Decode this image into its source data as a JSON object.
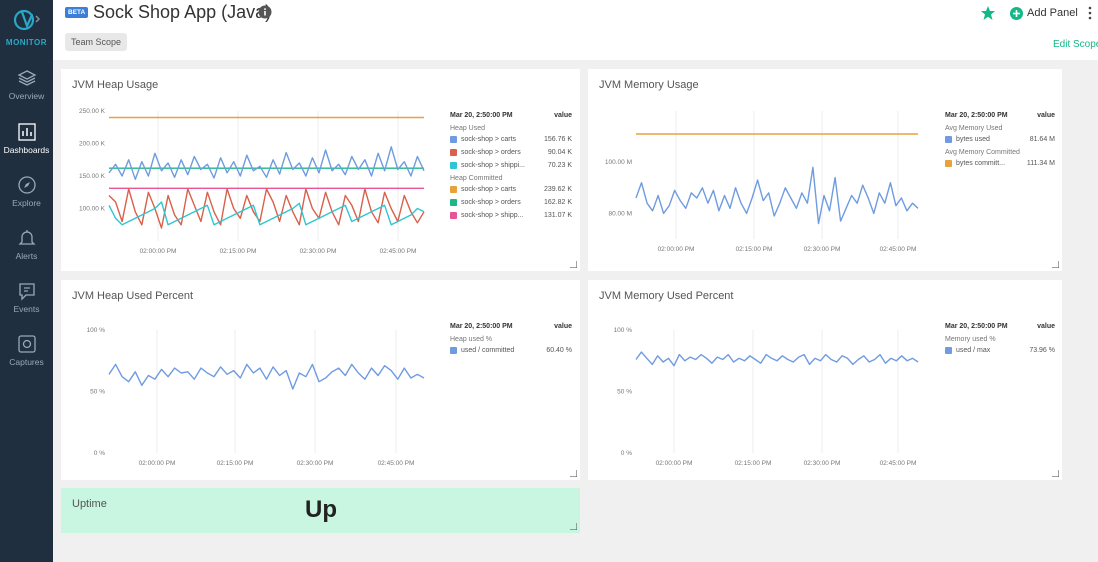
{
  "app": {
    "brand": "MONITOR",
    "beta": "BETA",
    "title": "Sock Shop App (Java)",
    "scope": "Team Scope",
    "add_panel": "Add Panel",
    "edit_scope": "Edit Scope",
    "accent": "#12b886"
  },
  "nav": [
    {
      "label": "Overview",
      "icon": "overview-icon"
    },
    {
      "label": "Dashboards",
      "icon": "dashboards-icon",
      "active": true
    },
    {
      "label": "Explore",
      "icon": "explore-icon"
    },
    {
      "label": "Alerts",
      "icon": "alerts-icon"
    },
    {
      "label": "Events",
      "icon": "events-icon"
    },
    {
      "label": "Captures",
      "icon": "captures-icon"
    }
  ],
  "panels": {
    "heap_usage": {
      "title": "JVM Heap Usage",
      "legend": {
        "timestamp": "Mar 20, 2:50:00 PM",
        "value_header": "value",
        "groups": [
          {
            "name": "Heap Used",
            "rows": [
              {
                "label": "sock-shop > carts",
                "value": "156.76 K",
                "color": "#6f9be0"
              },
              {
                "label": "sock-shop > orders",
                "value": "90.04 K",
                "color": "#d9604a"
              },
              {
                "label": "sock-shop > shippi...",
                "value": "70.23 K",
                "color": "#2cc7d1"
              }
            ]
          },
          {
            "name": "Heap Committed",
            "rows": [
              {
                "label": "sock-shop > carts",
                "value": "239.62 K",
                "color": "#e8a23b"
              },
              {
                "label": "sock-shop > orders",
                "value": "162.82 K",
                "color": "#1db885"
              },
              {
                "label": "sock-shop > shipp...",
                "value": "131.07 K",
                "color": "#e85597"
              }
            ]
          }
        ]
      }
    },
    "memory_usage": {
      "title": "JVM Memory Usage",
      "legend": {
        "timestamp": "Mar 20, 2:50:00 PM",
        "value_header": "value",
        "groups": [
          {
            "name": "Avg Memory Used",
            "rows": [
              {
                "label": "bytes used",
                "value": "81.64 M",
                "color": "#6f9be0"
              }
            ]
          },
          {
            "name": "Avg Memory Committed",
            "rows": [
              {
                "label": "bytes committ...",
                "value": "111.34 M",
                "color": "#e8a23b"
              }
            ]
          }
        ]
      }
    },
    "heap_percent": {
      "title": "JVM Heap Used Percent",
      "legend": {
        "timestamp": "Mar 20, 2:50:00 PM",
        "value_header": "value",
        "groups": [
          {
            "name": "Heap used %",
            "rows": [
              {
                "label": "used / committed",
                "value": "60.40 %",
                "color": "#6f9be0"
              }
            ]
          }
        ]
      }
    },
    "memory_percent": {
      "title": "JVM Memory Used Percent",
      "legend": {
        "timestamp": "Mar 20, 2:50:00 PM",
        "value_header": "value",
        "groups": [
          {
            "name": "Memory used %",
            "rows": [
              {
                "label": "used / max",
                "value": "73.96 %",
                "color": "#6f9be0"
              }
            ]
          }
        ]
      }
    },
    "uptime": {
      "title": "Uptime",
      "status": "Up",
      "color": "#c8f6e0"
    }
  },
  "chart_data": [
    {
      "type": "line",
      "title": "JVM Heap Usage",
      "ylim": [
        50,
        250
      ],
      "yticks": [
        "250.00 K",
        "200.00 K",
        "150.00 K",
        "100.00 K"
      ],
      "xticks": [
        "02:00:00 PM",
        "02:15:00 PM",
        "02:30:00 PM",
        "02:45:00 PM"
      ],
      "series": [
        {
          "name": "committed carts",
          "color": "#e8a23b",
          "values": [
            240,
            240,
            240,
            240,
            240,
            240,
            240,
            240,
            240,
            240
          ]
        },
        {
          "name": "committed orders",
          "color": "#1db885",
          "values": [
            162,
            162,
            162,
            162,
            162,
            162,
            162,
            162,
            162,
            162
          ]
        },
        {
          "name": "committed shipping",
          "color": "#e85597",
          "values": [
            131,
            131,
            131,
            131,
            131,
            131,
            131,
            131,
            131,
            131
          ]
        },
        {
          "name": "used carts",
          "color": "#6f9be0",
          "values": [
            155,
            168,
            150,
            175,
            145,
            172,
            150,
            185,
            158,
            170,
            148,
            175,
            152,
            180,
            160,
            168,
            147,
            178,
            155,
            172,
            150,
            182,
            158,
            165,
            148,
            175,
            153,
            186,
            160,
            170,
            150,
            178,
            155,
            190,
            158,
            168,
            152,
            180,
            160,
            175,
            150,
            185,
            158,
            195,
            160,
            172,
            150,
            180,
            158
          ]
        },
        {
          "name": "used orders",
          "color": "#d9604a",
          "values": [
            120,
            110,
            80,
            130,
            95,
            75,
            125,
            100,
            70,
            120,
            90,
            75,
            130,
            105,
            80,
            125,
            95,
            75,
            130,
            100,
            85,
            120,
            95,
            80,
            130,
            110,
            80,
            120,
            95,
            75,
            130,
            100,
            85,
            125,
            95,
            75,
            120,
            105,
            80,
            130,
            95,
            78,
            125,
            100,
            80,
            120,
            95,
            78,
            95
          ]
        },
        {
          "name": "used shipping",
          "color": "#2cc7d1",
          "values": [
            105,
            85,
            75,
            80,
            85,
            90,
            95,
            100,
            110,
            75,
            80,
            85,
            90,
            95,
            100,
            105,
            75,
            80,
            85,
            90,
            95,
            100,
            105,
            75,
            80,
            85,
            90,
            95,
            100,
            108,
            75,
            80,
            85,
            90,
            95,
            100,
            105,
            80,
            85,
            90,
            95,
            100,
            105,
            75,
            80,
            85,
            90,
            100,
            95
          ]
        }
      ]
    },
    {
      "type": "line",
      "title": "JVM Memory Usage",
      "ylim": [
        70,
        120
      ],
      "yticks": [
        "100.00 M",
        "80.00 M"
      ],
      "xticks": [
        "02:00:00 PM",
        "02:15:00 PM",
        "02:30:00 PM",
        "02:45:00 PM"
      ],
      "series": [
        {
          "name": "bytes committed",
          "color": "#e8a23b",
          "values": [
            111,
            111,
            111,
            111,
            111,
            111,
            111,
            111,
            111,
            111
          ]
        },
        {
          "name": "bytes used",
          "color": "#6f9be0",
          "values": [
            86,
            92,
            84,
            81,
            87,
            80,
            83,
            89,
            85,
            82,
            88,
            86,
            90,
            84,
            89,
            81,
            87,
            82,
            90,
            84,
            80,
            86,
            93,
            85,
            88,
            79,
            84,
            90,
            86,
            82,
            88,
            84,
            98,
            76,
            87,
            81,
            94,
            77,
            82,
            87,
            84,
            91,
            86,
            80,
            88,
            84,
            92,
            83,
            86,
            81,
            84,
            82
          ]
        }
      ]
    },
    {
      "type": "line",
      "title": "JVM Heap Used Percent",
      "ylim": [
        0,
        100
      ],
      "yticks": [
        "100 %",
        "50 %",
        "0 %"
      ],
      "xticks": [
        "02:00:00 PM",
        "02:15:00 PM",
        "02:30:00 PM",
        "02:45:00 PM"
      ],
      "series": [
        {
          "name": "used / committed",
          "color": "#6f9be0",
          "values": [
            64,
            72,
            62,
            58,
            66,
            55,
            63,
            60,
            68,
            62,
            69,
            65,
            66,
            60,
            69,
            65,
            62,
            70,
            64,
            67,
            61,
            72,
            65,
            69,
            60,
            70,
            63,
            67,
            52,
            65,
            62,
            72,
            58,
            61,
            66,
            69,
            63,
            72,
            65,
            60,
            69,
            63,
            71,
            67,
            60,
            69,
            61,
            64,
            61
          ]
        }
      ]
    },
    {
      "type": "line",
      "title": "JVM Memory Used Percent",
      "ylim": [
        0,
        100
      ],
      "yticks": [
        "100 %",
        "50 %",
        "0 %"
      ],
      "xticks": [
        "02:00:00 PM",
        "02:15:00 PM",
        "02:30:00 PM",
        "02:45:00 PM"
      ],
      "series": [
        {
          "name": "used / max",
          "color": "#6f9be0",
          "values": [
            76,
            82,
            77,
            72,
            79,
            74,
            77,
            71,
            80,
            75,
            78,
            76,
            80,
            77,
            73,
            78,
            76,
            80,
            74,
            77,
            75,
            79,
            76,
            73,
            80,
            77,
            75,
            79,
            76,
            74,
            78,
            80,
            72,
            77,
            75,
            80,
            76,
            74,
            79,
            77,
            72,
            76,
            79,
            74,
            76,
            80,
            73,
            77,
            75,
            79,
            75,
            77,
            74
          ]
        }
      ]
    }
  ]
}
